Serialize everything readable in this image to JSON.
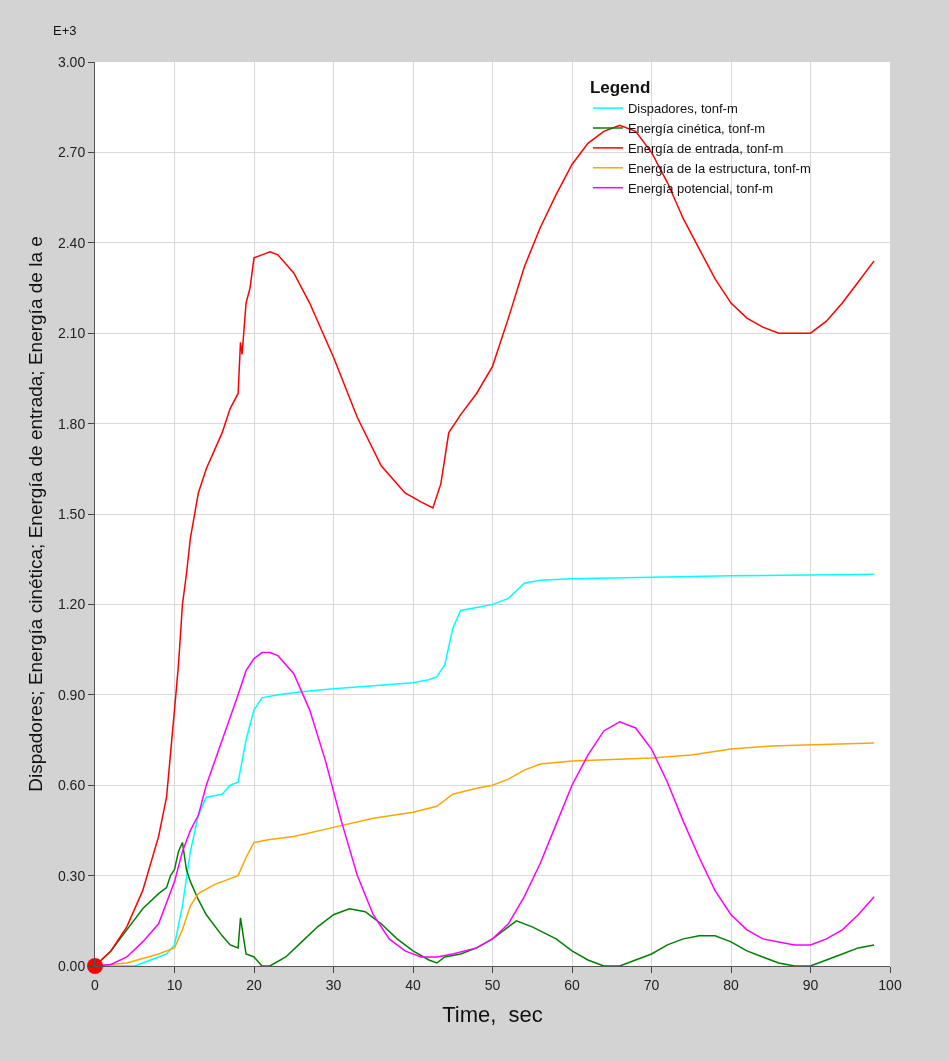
{
  "chart_data": {
    "type": "line",
    "xlabel": "Time,  sec",
    "ylabel": "Dispadores; Energía cinética; Energía de entrada; Energía de la e",
    "legend_title": "Legend",
    "annotations": [
      "E+3"
    ],
    "xlim": [
      0,
      100
    ],
    "xticks": [
      0,
      10,
      20,
      30,
      40,
      50,
      60,
      70,
      80,
      90,
      100
    ],
    "ylim": [
      0,
      3
    ],
    "yticks": [
      {
        "value": 0,
        "label": "0.00"
      },
      {
        "value": 0.3,
        "label": "0.30"
      },
      {
        "value": 0.6,
        "label": "0.60"
      },
      {
        "value": 0.9,
        "label": "0.90"
      },
      {
        "value": 1.2,
        "label": "1.20"
      },
      {
        "value": 1.5,
        "label": "1.50"
      },
      {
        "value": 1.8,
        "label": "1.80"
      },
      {
        "value": 2.1,
        "label": "2.10"
      },
      {
        "value": 2.4,
        "label": "2.40"
      },
      {
        "value": 2.7,
        "label": "2.70"
      },
      {
        "value": 3.0,
        "label": "3.00"
      }
    ],
    "grid": true,
    "legend": "top right",
    "series": [
      {
        "name": "Dispadores, tonf-m",
        "color": "#00ffff",
        "x": [
          0,
          5,
          8,
          9,
          10,
          11,
          12,
          13,
          14,
          16,
          17,
          18,
          19,
          20,
          21,
          23,
          26,
          30,
          35,
          40,
          42,
          43,
          44,
          45,
          46,
          48,
          50,
          52,
          54,
          56,
          60,
          70,
          80,
          98
        ],
        "values": [
          0,
          0,
          0.03,
          0.04,
          0.07,
          0.2,
          0.38,
          0.5,
          0.56,
          0.57,
          0.6,
          0.61,
          0.75,
          0.85,
          0.89,
          0.9,
          0.91,
          0.92,
          0.93,
          0.94,
          0.95,
          0.96,
          1.0,
          1.12,
          1.18,
          1.19,
          1.2,
          1.22,
          1.27,
          1.28,
          1.285,
          1.29,
          1.295,
          1.3
        ]
      },
      {
        "name": "Energía cinética, tonf-m",
        "color": "#008000",
        "x": [
          0,
          2,
          4,
          6,
          8,
          9,
          9.5,
          10,
          10.5,
          11,
          11.5,
          12,
          13,
          14,
          16,
          17,
          18,
          18.3,
          19,
          20,
          21,
          22,
          24,
          26,
          28,
          30,
          32,
          34,
          36,
          38,
          40,
          42,
          43,
          44,
          46,
          48,
          50,
          52,
          53,
          55,
          58,
          60,
          62,
          64,
          66,
          68,
          70,
          72,
          74,
          76,
          78,
          80,
          82,
          84,
          86,
          88,
          90,
          92,
          94,
          96,
          98
        ],
        "values": [
          0,
          0.05,
          0.12,
          0.19,
          0.24,
          0.26,
          0.3,
          0.32,
          0.38,
          0.41,
          0.32,
          0.28,
          0.22,
          0.17,
          0.1,
          0.07,
          0.06,
          0.16,
          0.04,
          0.03,
          0,
          0,
          0.03,
          0.08,
          0.13,
          0.17,
          0.19,
          0.18,
          0.14,
          0.09,
          0.05,
          0.02,
          0.01,
          0.03,
          0.04,
          0.06,
          0.09,
          0.13,
          0.15,
          0.13,
          0.09,
          0.05,
          0.02,
          0,
          0,
          0.02,
          0.04,
          0.07,
          0.09,
          0.1,
          0.1,
          0.08,
          0.05,
          0.03,
          0.01,
          0,
          0,
          0.02,
          0.04,
          0.06,
          0.07
        ]
      },
      {
        "name": "Energía de entrada, tonf-m",
        "color": "#ff0000",
        "x": [
          0,
          2,
          4,
          6,
          8,
          9,
          10,
          10.5,
          11,
          11.5,
          12,
          13,
          14,
          16,
          17,
          18,
          18.3,
          18.5,
          19,
          19.5,
          20,
          21,
          22,
          23,
          25,
          27,
          30,
          33,
          36,
          39,
          41,
          42.5,
          43.5,
          44.5,
          46,
          48,
          50,
          52,
          54,
          56,
          58,
          60,
          62,
          64,
          66,
          68,
          70,
          72,
          74,
          76,
          78,
          80,
          82,
          84,
          86,
          88,
          90,
          92,
          94,
          96,
          98
        ],
        "values": [
          0,
          0.05,
          0.13,
          0.25,
          0.43,
          0.56,
          0.85,
          1.0,
          1.2,
          1.3,
          1.42,
          1.57,
          1.65,
          1.77,
          1.85,
          1.9,
          2.07,
          2.03,
          2.2,
          2.25,
          2.35,
          2.36,
          2.37,
          2.36,
          2.3,
          2.2,
          2.02,
          1.82,
          1.66,
          1.57,
          1.54,
          1.52,
          1.6,
          1.77,
          1.83,
          1.9,
          1.99,
          2.15,
          2.32,
          2.45,
          2.56,
          2.66,
          2.73,
          2.77,
          2.79,
          2.77,
          2.7,
          2.6,
          2.48,
          2.38,
          2.28,
          2.2,
          2.15,
          2.12,
          2.1,
          2.1,
          2.1,
          2.14,
          2.2,
          2.27,
          2.34
        ]
      },
      {
        "name": "Energía de la estructura, tonf-m",
        "color": "#ffa500",
        "x": [
          0,
          4,
          8,
          10,
          11,
          12,
          13,
          15,
          17,
          18,
          19,
          20,
          22,
          25,
          30,
          35,
          40,
          43,
          45,
          48,
          50,
          52,
          54,
          56,
          60,
          70,
          75,
          80,
          85,
          98
        ],
        "values": [
          0,
          0.01,
          0.04,
          0.06,
          0.12,
          0.2,
          0.24,
          0.27,
          0.29,
          0.3,
          0.36,
          0.41,
          0.42,
          0.43,
          0.46,
          0.49,
          0.51,
          0.53,
          0.57,
          0.59,
          0.6,
          0.62,
          0.65,
          0.67,
          0.68,
          0.69,
          0.7,
          0.72,
          0.73,
          0.74
        ]
      },
      {
        "name": "Energía potencial, tonf-m",
        "color": "#ff00ff",
        "x": [
          0,
          2,
          4,
          6,
          8,
          10,
          11,
          12,
          13,
          14,
          16,
          18,
          19,
          20,
          21,
          22,
          23,
          25,
          27,
          29,
          31,
          33,
          35,
          37,
          39,
          41,
          43,
          45,
          48,
          50,
          52,
          54,
          56,
          58,
          60,
          62,
          64,
          66,
          68,
          70,
          72,
          74,
          76,
          78,
          80,
          82,
          84,
          86,
          88,
          90,
          92,
          94,
          96,
          98
        ],
        "values": [
          0,
          0.005,
          0.03,
          0.08,
          0.14,
          0.28,
          0.38,
          0.45,
          0.5,
          0.6,
          0.75,
          0.9,
          0.98,
          1.02,
          1.04,
          1.04,
          1.03,
          0.97,
          0.85,
          0.68,
          0.48,
          0.3,
          0.17,
          0.09,
          0.05,
          0.03,
          0.03,
          0.04,
          0.06,
          0.09,
          0.14,
          0.23,
          0.34,
          0.47,
          0.6,
          0.7,
          0.78,
          0.81,
          0.79,
          0.72,
          0.61,
          0.48,
          0.36,
          0.25,
          0.17,
          0.12,
          0.09,
          0.08,
          0.07,
          0.07,
          0.09,
          0.12,
          0.17,
          0.23
        ]
      },
      {
        "type": "scatter",
        "marker": "circle",
        "color": "#ff0000",
        "x": [
          0
        ],
        "values": [
          0
        ]
      }
    ]
  }
}
